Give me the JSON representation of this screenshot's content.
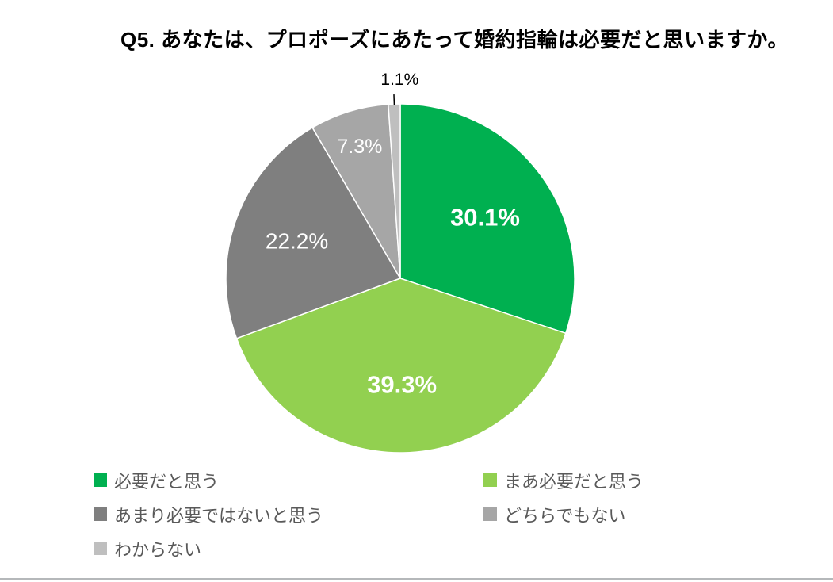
{
  "page": {
    "background": "#ffffff",
    "divider_color": "#b5b8ba"
  },
  "title": "Q5. あなたは、プロポーズにあたって婚約指輪は必要だと思いますか。",
  "chart_data": {
    "type": "pie",
    "title": "Q5. あなたは、プロポーズにあたって婚約指輪は必要だと思いますか。",
    "categories": [
      "必要だと思う",
      "まあ必要だと思う",
      "あまり必要ではないと思う",
      "どちらでもない",
      "わからない"
    ],
    "values": [
      30.1,
      39.3,
      22.2,
      7.3,
      1.1
    ],
    "unit": "%",
    "colors": [
      "#00B050",
      "#92D050",
      "#7F7F7F",
      "#A6A6A6",
      "#BFBFBF"
    ],
    "start_angle_deg": 0,
    "direction": "clockwise",
    "slice_border_color": "#ffffff",
    "data_label_color_inside": "#ffffff",
    "data_label_color_outside": "#000000",
    "legend_position": "bottom",
    "legend_text_color": "#595959",
    "data_labels": [
      "30.1%",
      "39.3%",
      "22.2%",
      "7.3%",
      "1.1%"
    ]
  }
}
